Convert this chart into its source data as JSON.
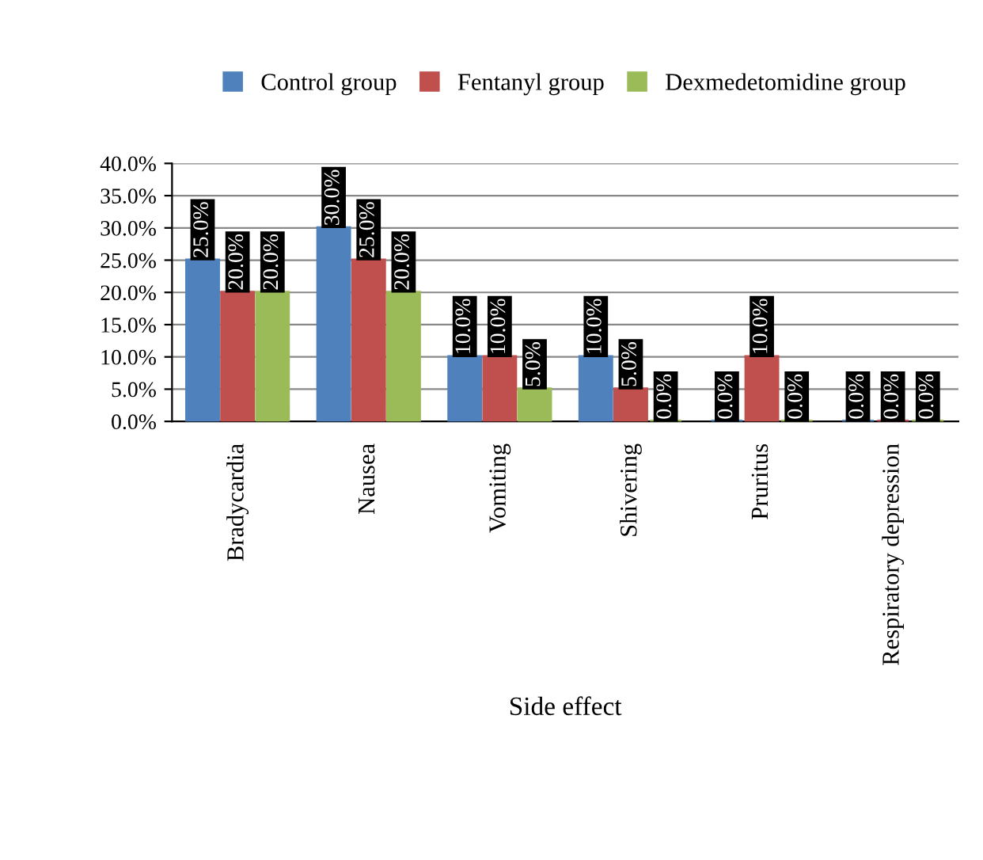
{
  "chart_data": {
    "type": "bar",
    "xlabel": "Side effect",
    "categories": [
      "Bradycardia",
      "Nausea",
      "Vomiting",
      "Shivering",
      "Pruritus",
      "Respiratory depression"
    ],
    "series": [
      {
        "name": "Control group",
        "color": "#4f81bd",
        "values": [
          25,
          30,
          10,
          10,
          0,
          0
        ],
        "value_labels": [
          "25.0%",
          "30.0%",
          "10.0%",
          "10.0%",
          "0.0%",
          "0.0%"
        ]
      },
      {
        "name": "Fentanyl group",
        "color": "#c0504d",
        "values": [
          20,
          25,
          10,
          5,
          10,
          0
        ],
        "value_labels": [
          "20.0%",
          "25.0%",
          "10.0%",
          "5.0%",
          "10.0%",
          "0.0%"
        ]
      },
      {
        "name": "Dexmedetomidine group",
        "color": "#9bbb59",
        "values": [
          20,
          20,
          5,
          0,
          0,
          0
        ],
        "value_labels": [
          "20.0%",
          "20.0%",
          "5.0%",
          "0.0%",
          "0.0%",
          "0.0%"
        ]
      }
    ],
    "ylim": [
      0,
      40
    ],
    "yticks": [
      {
        "value": 0,
        "label": "0.0%"
      },
      {
        "value": 5,
        "label": "5.0%"
      },
      {
        "value": 10,
        "label": "10.0%"
      },
      {
        "value": 15,
        "label": "15.0%"
      },
      {
        "value": 20,
        "label": "20.0%"
      },
      {
        "value": 25,
        "label": "25.0%"
      },
      {
        "value": 30,
        "label": "30.0%"
      },
      {
        "value": 35,
        "label": "35.0%"
      },
      {
        "value": 40,
        "label": "40.0%"
      }
    ],
    "grid": "y",
    "legend": "top"
  }
}
